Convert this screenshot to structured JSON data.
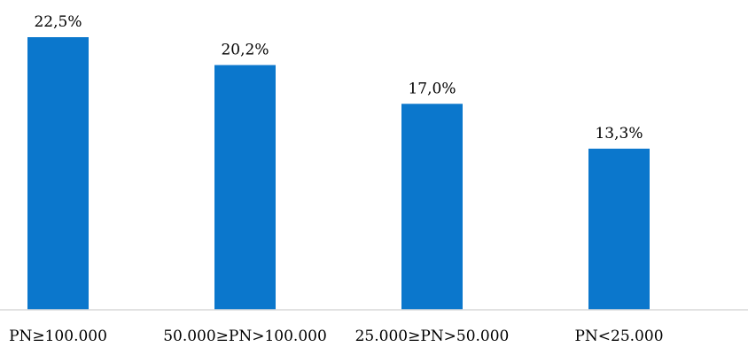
{
  "chart_data": {
    "type": "bar",
    "categories": [
      "PN≥100.000",
      "50.000≥PN>100.000",
      "25.000≥PN>50.000",
      "PN<25.000"
    ],
    "values": [
      22.5,
      20.2,
      17.0,
      13.3
    ],
    "data_labels": [
      "22,5%",
      "20,2%",
      "17,0%",
      "13,3%"
    ],
    "title": "",
    "xlabel": "",
    "ylabel": "",
    "ylim": [
      0,
      22.5
    ],
    "grid": false,
    "legend": "none",
    "colors": {
      "bar": "#0B77CC",
      "axis": "#D9D9D9"
    }
  }
}
